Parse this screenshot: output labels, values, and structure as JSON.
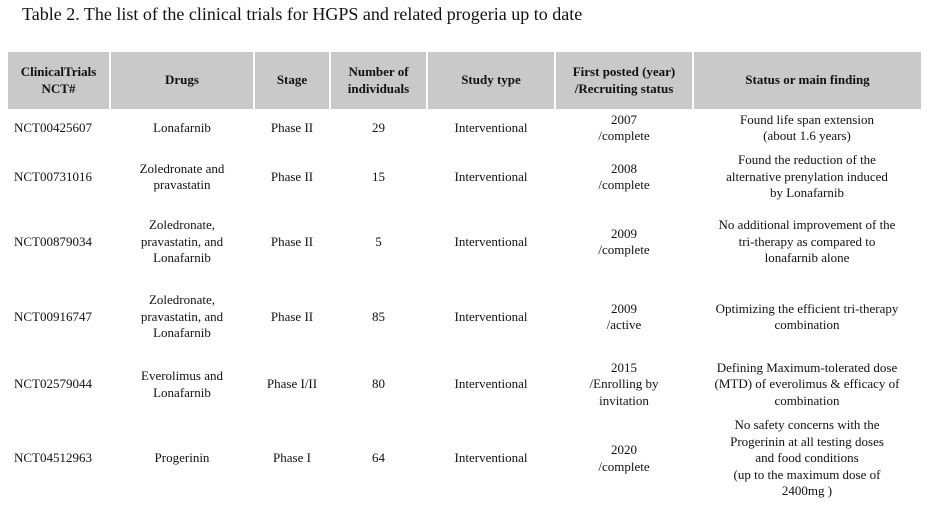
{
  "title": "Table 2. The list of the clinical trials for HGPS and related progeria up to date",
  "table": {
    "header": [
      "ClinicalTrials\nNCT#",
      "Drugs",
      "Stage",
      "Number of\nindividuals",
      "Study type",
      "First posted (year)\n/Recruiting status",
      "Status or main finding"
    ],
    "rows": [
      [
        "NCT00425607",
        "Lonafarnib",
        "Phase II",
        29,
        "Interventional",
        "2007\n/complete",
        "Found life span extension\n(about 1.6 years)"
      ],
      [
        "NCT00731016",
        "Zoledronate and\npravastatin",
        "Phase II",
        15,
        "Interventional",
        "2008\n/complete",
        "Found the reduction of the\nalternative prenylation induced\nby Lonafarnib"
      ],
      [
        "NCT00879034",
        "Zoledronate,\npravastatin, and\nLonafarnib",
        "Phase II",
        5,
        "Interventional",
        "2009\n/complete",
        "No additional improvement of the\ntri-therapy as compared to\nlonafarnib alone"
      ],
      [
        "NCT00916747",
        "Zoledronate,\npravastatin, and\nLonafarnib",
        "Phase II",
        85,
        "Interventional",
        "2009\n/active",
        "Optimizing the efficient tri-therapy\ncombination"
      ],
      [
        "NCT02579044",
        "Everolimus and\nLonafarnib",
        "Phase I/II",
        80,
        "Interventional",
        "2015\n/Enrolling by\ninvitation",
        "Defining Maximum-tolerated dose\n(MTD) of everolimus & efficacy of\ncombination"
      ],
      [
        "NCT04512963",
        "Progerinin",
        "Phase I",
        64,
        "Interventional",
        "2020\n/complete",
        "No safety concerns with the\nProgerinin at all testing doses\nand food conditions\n (up to the maximum dose of\n2400mg )"
      ]
    ]
  }
}
